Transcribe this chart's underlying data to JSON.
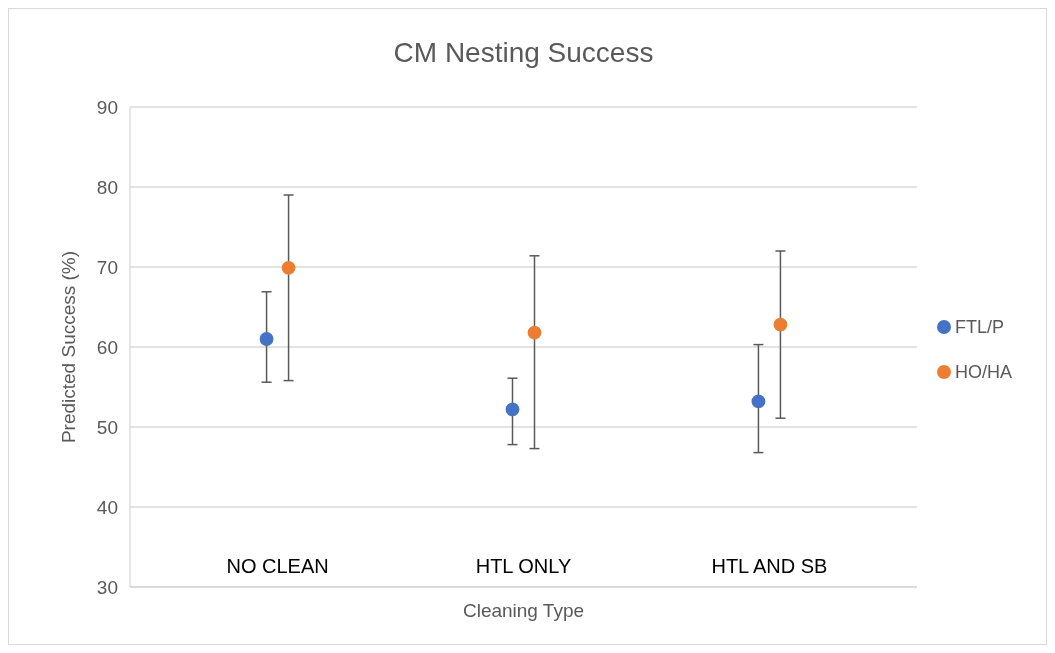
{
  "chart_data": {
    "type": "scatter",
    "title": "CM Nesting Success",
    "xlabel": "Cleaning Type",
    "ylabel": "Predicted Success (%)",
    "categories": [
      "NO CLEAN",
      "HTL ONLY",
      "HTL AND SB"
    ],
    "series": [
      {
        "name": "FTL/P",
        "color": "#4472c4",
        "values": [
          61.0,
          52.2,
          53.2
        ],
        "errors": [
          [
            55.6,
            66.9
          ],
          [
            47.8,
            56.1
          ],
          [
            46.8,
            60.3
          ]
        ]
      },
      {
        "name": "HO/HA",
        "color": "#ed7d31",
        "values": [
          69.9,
          61.8,
          62.8
        ],
        "errors": [
          [
            55.8,
            79.0
          ],
          [
            47.3,
            71.4
          ],
          [
            51.1,
            72.0
          ]
        ]
      }
    ],
    "ylim": [
      30,
      90
    ],
    "yticks": [
      30,
      40,
      50,
      60,
      70,
      80,
      90
    ],
    "grid": "y",
    "legend": "right",
    "marker": "circle"
  }
}
